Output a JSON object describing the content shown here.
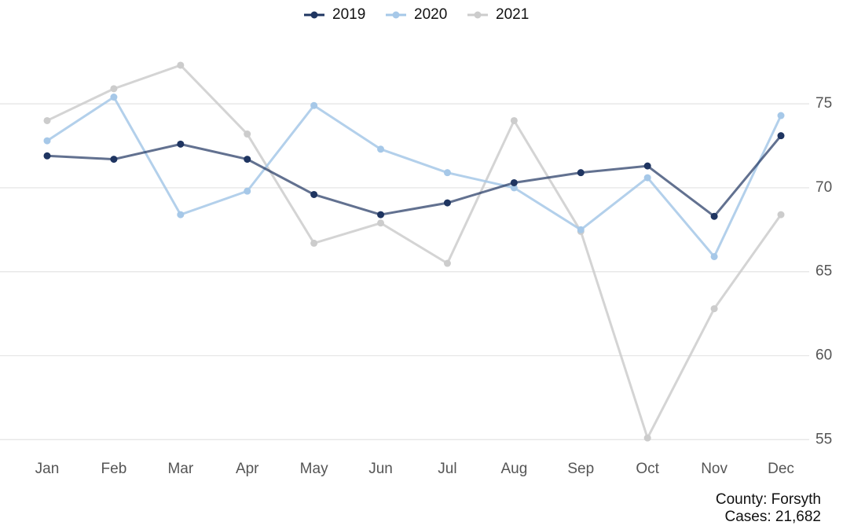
{
  "chart_data": {
    "type": "line",
    "categories": [
      "Jan",
      "Feb",
      "Mar",
      "Apr",
      "May",
      "Jun",
      "Jul",
      "Aug",
      "Sep",
      "Oct",
      "Nov",
      "Dec"
    ],
    "series": [
      {
        "name": "2019",
        "color": "#1f3561",
        "values": [
          71.9,
          71.7,
          72.6,
          71.7,
          69.6,
          68.4,
          69.1,
          70.3,
          70.9,
          71.3,
          68.3,
          73.1
        ]
      },
      {
        "name": "2020",
        "color": "#a6c8e8",
        "values": [
          72.8,
          75.4,
          68.4,
          69.8,
          74.9,
          72.3,
          70.9,
          70.0,
          67.5,
          70.6,
          65.9,
          74.3
        ]
      },
      {
        "name": "2021",
        "color": "#cccccc",
        "values": [
          74.0,
          75.9,
          77.3,
          73.2,
          66.7,
          67.9,
          65.5,
          74.0,
          67.4,
          55.1,
          62.8,
          68.4
        ]
      }
    ],
    "ylim": [
      54.5,
      78
    ],
    "yticks": [
      55,
      60,
      65,
      70,
      75
    ],
    "grid": true,
    "y_axis_side": "right",
    "legend": "top",
    "caption": [
      "County: Forsyth",
      "Cases: 21,682"
    ]
  }
}
